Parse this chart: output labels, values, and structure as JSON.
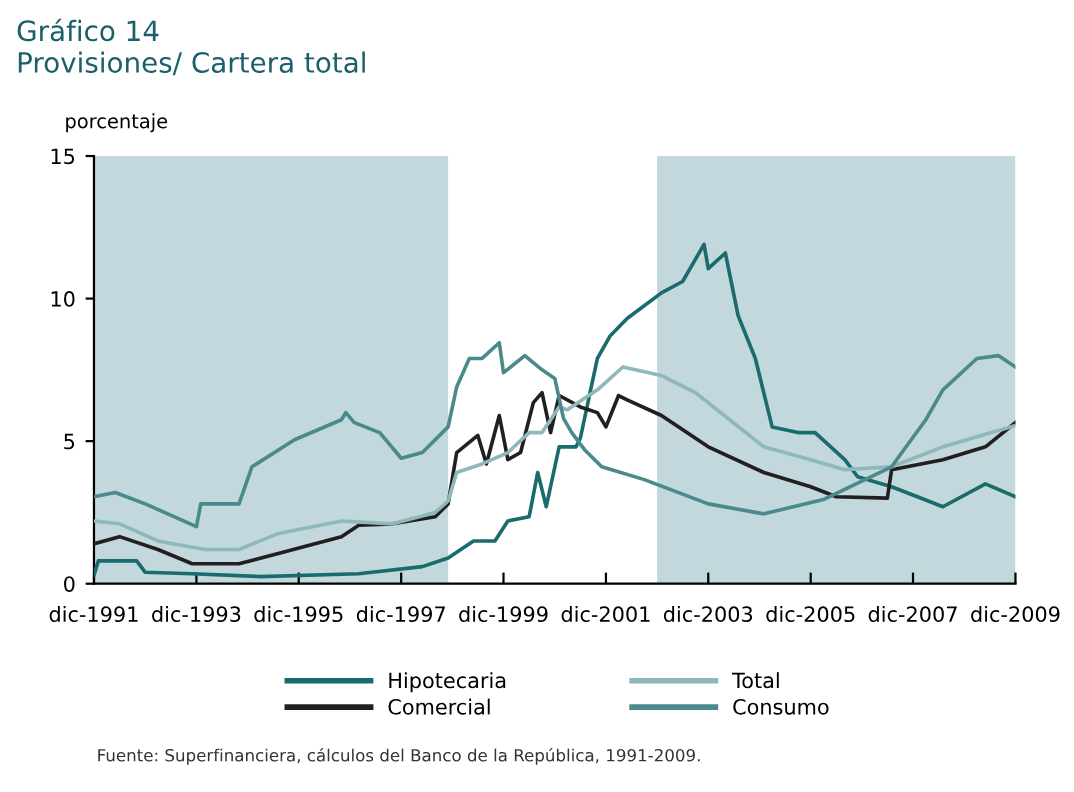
{
  "chart_data": {
    "type": "line",
    "title": "Gráfico 14",
    "subtitle": "Provisiones/ Cartera total",
    "ylabel": "porcentaje",
    "annotations": [
      "Fuente: Superfinanciera, cálculos del Banco de la República, 1991-2009."
    ],
    "xlim": [
      "1991-12",
      "2009-12"
    ],
    "xticks": [
      {
        "value": "1991-12",
        "label": "dic-1991"
      },
      {
        "value": "1993-12",
        "label": "dic-1993"
      },
      {
        "value": "1995-12",
        "label": "dic-1995"
      },
      {
        "value": "1997-12",
        "label": "dic-1997"
      },
      {
        "value": "1999-12",
        "label": "dic-1999"
      },
      {
        "value": "2001-12",
        "label": "dic-2001"
      },
      {
        "value": "2003-12",
        "label": "dic-2003"
      },
      {
        "value": "2005-12",
        "label": "dic-2005"
      },
      {
        "value": "2007-12",
        "label": "dic-2007"
      },
      {
        "value": "2009-12",
        "label": "dic-2009"
      }
    ],
    "ylim": [
      0,
      15
    ],
    "yticks": [
      0,
      5,
      10,
      15
    ],
    "grid": false,
    "legend": "bottom",
    "bands": [
      {
        "axis": "x",
        "from": "1991-12",
        "to": "1998-11",
        "color": "#c2d8dc"
      },
      {
        "axis": "x",
        "from": "2002-12",
        "to": "2009-12",
        "color": "#c2d8dc"
      }
    ],
    "series": [
      {
        "name": "Hipotecaria",
        "color": "#1a6b6e",
        "x": [
          "1991-12",
          "1992-01",
          "1992-10",
          "1992-12",
          "1993-11",
          "1995-03",
          "1997-02",
          "1998-05",
          "1998-11",
          "1999-05",
          "1999-10",
          "2000-01",
          "2000-06",
          "2000-08",
          "2000-10",
          "2001-01",
          "2001-05",
          "2001-06",
          "2001-10",
          "2002-01",
          "2002-05",
          "2003-01",
          "2003-06",
          "2003-11",
          "2003-12",
          "2004-04",
          "2004-07",
          "2004-11",
          "2005-03",
          "2005-09",
          "2006-01",
          "2006-08",
          "2006-11",
          "2007-07",
          "2008-01",
          "2008-07",
          "2009-05",
          "2009-12"
        ],
        "values": [
          0.3,
          0.8,
          0.8,
          0.4,
          0.35,
          0.25,
          0.35,
          0.6,
          0.9,
          1.5,
          1.5,
          2.2,
          2.35,
          3.9,
          2.7,
          4.8,
          4.8,
          5.1,
          7.9,
          8.7,
          9.3,
          10.2,
          10.6,
          11.9,
          11.05,
          11.6,
          9.4,
          7.9,
          5.5,
          5.3,
          5.3,
          4.35,
          3.75,
          3.4,
          3.05,
          2.7,
          3.5,
          3.05
        ]
      },
      {
        "name": "Comercial",
        "color": "#231f20",
        "x": [
          "1991-12",
          "1992-06",
          "1993-03",
          "1993-11",
          "1994-10",
          "1995-07",
          "1996-10",
          "1997-02",
          "1997-10",
          "1998-08",
          "1998-11",
          "1999-01",
          "1999-06",
          "1999-08",
          "1999-11",
          "2000-01",
          "2000-04",
          "2000-07",
          "2000-09",
          "2000-11",
          "2001-01",
          "2001-06",
          "2001-10",
          "2001-12",
          "2002-03",
          "2002-05",
          "2003-01",
          "2003-12",
          "2005-01",
          "2005-12",
          "2006-06",
          "2007-06",
          "2007-07",
          "2008-07",
          "2009-05",
          "2009-12"
        ],
        "values": [
          1.4,
          1.65,
          1.2,
          0.7,
          0.7,
          1.05,
          1.65,
          2.05,
          2.1,
          2.35,
          2.8,
          4.6,
          5.2,
          4.2,
          5.9,
          4.35,
          4.6,
          6.35,
          6.7,
          5.3,
          6.6,
          6.2,
          6.0,
          5.5,
          6.6,
          6.45,
          5.9,
          4.8,
          3.9,
          3.4,
          3.05,
          3.0,
          4.0,
          4.35,
          4.8,
          5.65
        ]
      },
      {
        "name": "Total",
        "color": "#8fb8ba",
        "x": [
          "1991-12",
          "1992-06",
          "1993-03",
          "1994-02",
          "1994-10",
          "1995-07",
          "1996-10",
          "1997-10",
          "1998-08",
          "1998-11",
          "1999-01",
          "1999-07",
          "2000-01",
          "2000-06",
          "2000-09",
          "2001-01",
          "2001-03",
          "2001-10",
          "2002-04",
          "2003-01",
          "2003-09",
          "2004-05",
          "2005-01",
          "2005-12",
          "2006-08",
          "2007-07",
          "2008-07",
          "2009-12"
        ],
        "values": [
          2.2,
          2.1,
          1.5,
          1.2,
          1.2,
          1.75,
          2.2,
          2.1,
          2.5,
          2.9,
          3.9,
          4.2,
          4.6,
          5.3,
          5.3,
          6.2,
          6.1,
          6.8,
          7.6,
          7.3,
          6.7,
          5.75,
          4.8,
          4.35,
          4.0,
          4.1,
          4.8,
          5.55
        ]
      },
      {
        "name": "Consumo",
        "color": "#4a8a8c",
        "x": [
          "1991-12",
          "1992-05",
          "1992-12",
          "1993-12",
          "1994-01",
          "1994-10",
          "1995-01",
          "1995-11",
          "1996-10",
          "1996-11",
          "1997-01",
          "1997-07",
          "1997-12",
          "1998-05",
          "1998-11",
          "1999-01",
          "1999-04",
          "1999-07",
          "1999-11",
          "1999-12",
          "2000-05",
          "2000-09",
          "2000-12",
          "2001-02",
          "2001-04",
          "2001-07",
          "2001-11",
          "2002-09",
          "2003-12",
          "2005-01",
          "2006-03",
          "2007-07",
          "2008-03",
          "2008-07",
          "2009-03",
          "2009-08",
          "2009-12"
        ],
        "values": [
          3.05,
          3.2,
          2.8,
          2.0,
          2.8,
          2.8,
          4.1,
          5.05,
          5.75,
          6.0,
          5.65,
          5.3,
          4.4,
          4.6,
          5.5,
          6.9,
          7.9,
          7.9,
          8.45,
          7.4,
          8.0,
          7.5,
          7.2,
          5.8,
          5.3,
          4.7,
          4.1,
          3.65,
          2.8,
          2.45,
          2.95,
          4.1,
          5.75,
          6.8,
          7.9,
          8.0,
          7.6
        ]
      }
    ]
  }
}
